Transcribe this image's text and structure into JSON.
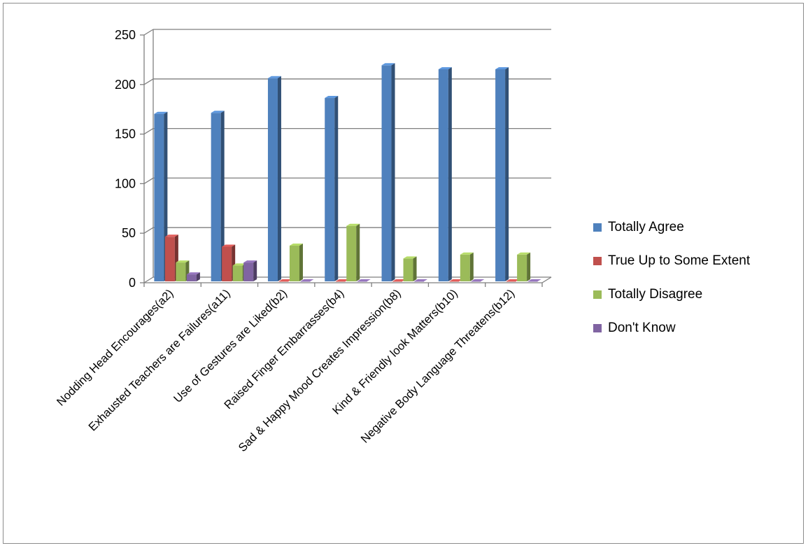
{
  "chart_data": {
    "type": "bar",
    "title": "",
    "xlabel": "",
    "ylabel": "",
    "ylim": [
      0,
      250
    ],
    "yticks": [
      0,
      50,
      100,
      150,
      200,
      250
    ],
    "grid": true,
    "legend_position": "right",
    "style": "3d-clustered-column",
    "categories": [
      "Nodding Head Encourages(a2)",
      "Exhausted Teachers are Failures(a11)",
      "Use of Gestures are Liked(b2)",
      "Raised Finger Embarrasses(b4)",
      "Sad & Happy Mood Creates Impression(b8)",
      "Kind & Friendly look Matters(b10)",
      "Negative Body Language Threatens(b12)"
    ],
    "series": [
      {
        "name": "Totally Agree",
        "color": "#4F81BD",
        "values": [
          169,
          170,
          205,
          185,
          218,
          214,
          214
        ]
      },
      {
        "name": "True Up to Some Extent",
        "color": "#C0504D",
        "values": [
          45,
          35,
          0,
          0,
          0,
          0,
          0
        ]
      },
      {
        "name": "Totally Disagree",
        "color": "#9BBB59",
        "values": [
          19,
          16,
          36,
          56,
          23,
          27,
          27
        ]
      },
      {
        "name": "Don't Know",
        "color": "#8064A2",
        "values": [
          7,
          19,
          0,
          0,
          0,
          0,
          0
        ]
      }
    ]
  }
}
